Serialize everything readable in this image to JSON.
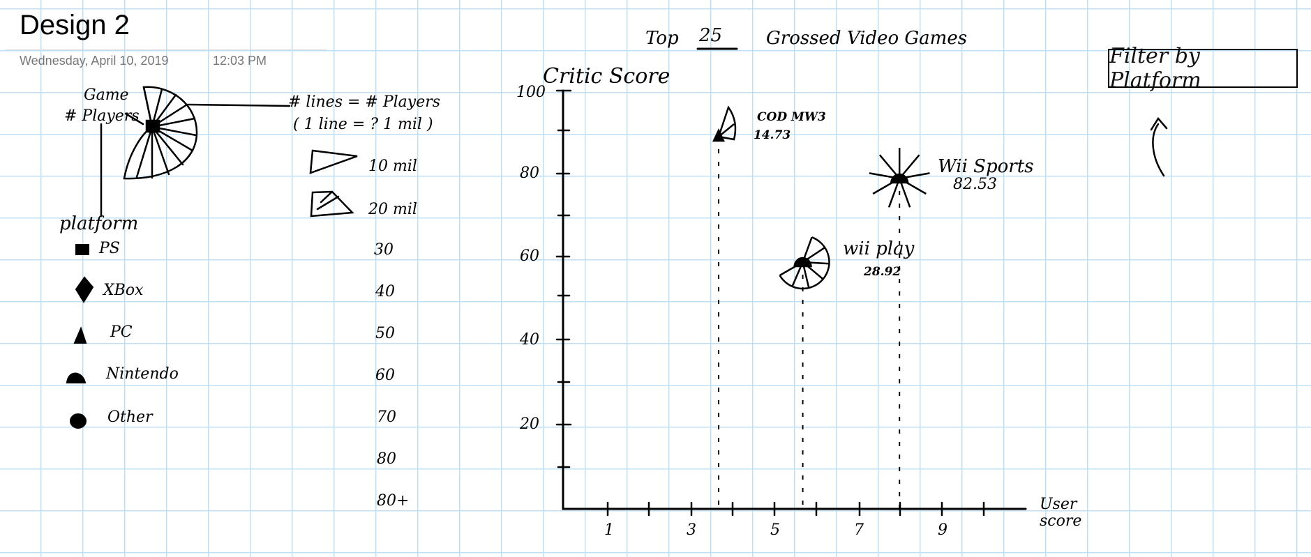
{
  "note": {
    "title": "Design 2",
    "date": "Wednesday, April 10, 2019",
    "time": "12:03 PM"
  },
  "header": {
    "title_prefix": "Top",
    "title_number": "25",
    "title_suffix": "Grossed Video Games"
  },
  "filter": {
    "label": "Filter by Platform"
  },
  "glyph_key": {
    "game_label": "Game",
    "players_label": "# Players",
    "platform_label": "platform"
  },
  "platform_legend": {
    "items": [
      {
        "label": "PS",
        "icon": "square-icon"
      },
      {
        "label": "XBox",
        "icon": "diamond-icon"
      },
      {
        "label": "PC",
        "icon": "triangle-icon"
      },
      {
        "label": "Nintendo",
        "icon": "dome-icon"
      },
      {
        "label": "Other",
        "icon": "circle-icon"
      }
    ]
  },
  "lines_legend": {
    "heading1": "# lines = # Players",
    "heading2": "( 1 line = ? 1 mil )",
    "items": [
      "10 mil",
      "20 mil",
      "30",
      "40",
      "50",
      "60",
      "70",
      "80",
      "80+"
    ]
  },
  "chart_data": {
    "type": "scatter",
    "ylabel": "Critic Score",
    "xlabel": "User score",
    "y_ticks": [
      "100",
      "80",
      "60",
      "40",
      "20"
    ],
    "x_ticks": [
      "1",
      "3",
      "5",
      "7",
      "9"
    ],
    "ylim": [
      0,
      100
    ],
    "xlim": [
      0,
      11
    ],
    "points": [
      {
        "name": "COD MW3",
        "value": "14.73",
        "x": 3.7,
        "y": 89,
        "platform": "PC"
      },
      {
        "name": "wii play",
        "value": "28.92",
        "x": 5.7,
        "y": 59,
        "platform": "Nintendo"
      },
      {
        "name": "Wii Sports",
        "value": "82.53",
        "x": 8.0,
        "y": 79,
        "platform": "Nintendo"
      }
    ]
  }
}
